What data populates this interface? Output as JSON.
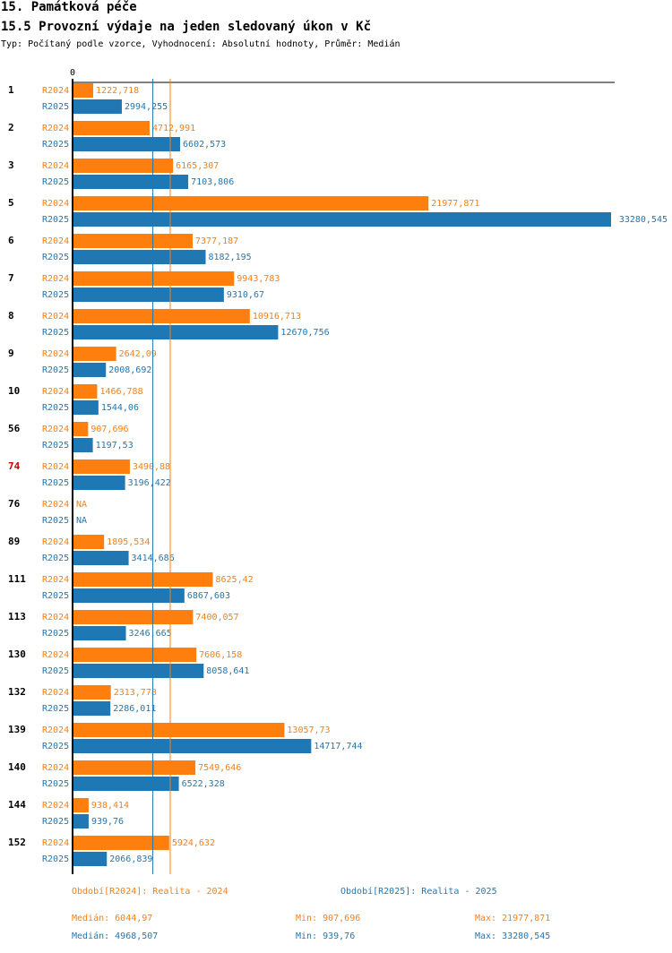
{
  "header": {
    "section": "15. Památková péče",
    "title": "15.5 Provozní výdaje na jeden sledovaný úkon v Kč",
    "subtitle": "Typ: Počítaný podle vzorce, Vyhodnocení: Absolutní hodnoty, Průměr: Medián"
  },
  "colors": {
    "r2024": "#ff7f0e",
    "r2025": "#1f77b4",
    "highlight": "#cc0000"
  },
  "chart_data": {
    "type": "bar",
    "orientation": "horizontal",
    "zero_label": "0",
    "xlim": [
      0,
      33280.545
    ],
    "series_names": [
      "R2024",
      "R2025"
    ],
    "categories": [
      {
        "label": "1",
        "highlight": false,
        "r2024": 1222.718,
        "r2024_label": "1222,718",
        "r2025": 2994.255,
        "r2025_label": "2994,255"
      },
      {
        "label": "2",
        "highlight": false,
        "r2024": 4712.991,
        "r2024_label": "4712,991",
        "r2025": 6602.573,
        "r2025_label": "6602,573"
      },
      {
        "label": "3",
        "highlight": false,
        "r2024": 6165.307,
        "r2024_label": "6165,307",
        "r2025": 7103.806,
        "r2025_label": "7103,806"
      },
      {
        "label": "5",
        "highlight": false,
        "r2024": 21977.871,
        "r2024_label": "21977,871",
        "r2025": 33280.545,
        "r2025_label": "33280,545"
      },
      {
        "label": "6",
        "highlight": false,
        "r2024": 7377.187,
        "r2024_label": "7377,187",
        "r2025": 8182.195,
        "r2025_label": "8182,195"
      },
      {
        "label": "7",
        "highlight": false,
        "r2024": 9943.783,
        "r2024_label": "9943,783",
        "r2025": 9310.67,
        "r2025_label": "9310,67"
      },
      {
        "label": "8",
        "highlight": false,
        "r2024": 10916.713,
        "r2024_label": "10916,713",
        "r2025": 12670.756,
        "r2025_label": "12670,756"
      },
      {
        "label": "9",
        "highlight": false,
        "r2024": 2642.09,
        "r2024_label": "2642,09",
        "r2025": 2008.692,
        "r2025_label": "2008,692"
      },
      {
        "label": "10",
        "highlight": false,
        "r2024": 1466.788,
        "r2024_label": "1466,788",
        "r2025": 1544.06,
        "r2025_label": "1544,06"
      },
      {
        "label": "56",
        "highlight": false,
        "r2024": 907.696,
        "r2024_label": "907,696",
        "r2025": 1197.53,
        "r2025_label": "1197,53"
      },
      {
        "label": "74",
        "highlight": true,
        "r2024": 3490.88,
        "r2024_label": "3490,88",
        "r2025": 3196.422,
        "r2025_label": "3196,422"
      },
      {
        "label": "76",
        "highlight": false,
        "r2024": null,
        "r2024_label": "NA",
        "r2025": null,
        "r2025_label": "NA"
      },
      {
        "label": "89",
        "highlight": false,
        "r2024": 1895.534,
        "r2024_label": "1895,534",
        "r2025": 3414.686,
        "r2025_label": "3414,686"
      },
      {
        "label": "111",
        "highlight": false,
        "r2024": 8625.42,
        "r2024_label": "8625,42",
        "r2025": 6867.603,
        "r2025_label": "6867,603"
      },
      {
        "label": "113",
        "highlight": false,
        "r2024": 7400.057,
        "r2024_label": "7400,057",
        "r2025": 3246.665,
        "r2025_label": "3246,665"
      },
      {
        "label": "130",
        "highlight": false,
        "r2024": 7606.158,
        "r2024_label": "7606,158",
        "r2025": 8058.641,
        "r2025_label": "8058,641"
      },
      {
        "label": "132",
        "highlight": false,
        "r2024": 2313.778,
        "r2024_label": "2313,778",
        "r2025": 2286.011,
        "r2025_label": "2286,011"
      },
      {
        "label": "139",
        "highlight": false,
        "r2024": 13057.73,
        "r2024_label": "13057,73",
        "r2025": 14717.744,
        "r2025_label": "14717,744"
      },
      {
        "label": "140",
        "highlight": false,
        "r2024": 7549.646,
        "r2024_label": "7549,646",
        "r2025": 6522.328,
        "r2025_label": "6522,328"
      },
      {
        "label": "144",
        "highlight": false,
        "r2024": 938.414,
        "r2024_label": "938,414",
        "r2025": 939.76,
        "r2025_label": "939,76"
      },
      {
        "label": "152",
        "highlight": false,
        "r2024": 5924.632,
        "r2024_label": "5924,632",
        "r2025": 2066.839,
        "r2025_label": "2066,839"
      }
    ],
    "medians": {
      "r2024": 6044.97,
      "r2025": 4968.507
    }
  },
  "legend": {
    "r2024_period": "Období[R2024]: Realita - 2024",
    "r2025_period": "Období[R2025]: Realita - 2025",
    "r2024_median": "Medián: 6044,97",
    "r2024_min": "Min: 907,696",
    "r2024_max": "Max: 21977,871",
    "r2025_median": "Medián: 4968,507",
    "r2025_min": "Min: 939,76",
    "r2025_max": "Max: 33280,545"
  }
}
